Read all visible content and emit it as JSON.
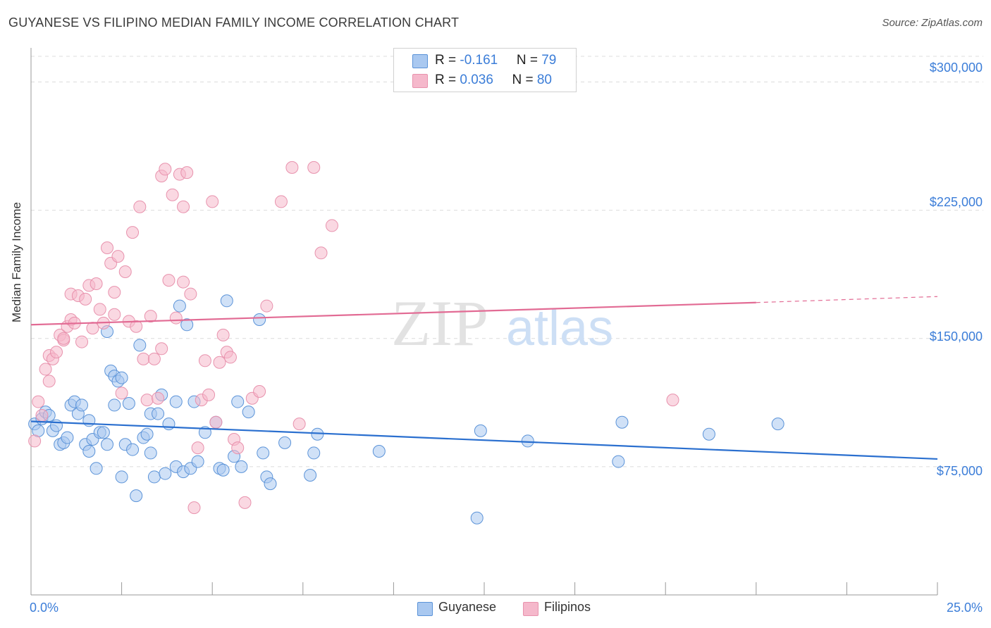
{
  "title": "GUYANESE VS FILIPINO MEDIAN FAMILY INCOME CORRELATION CHART",
  "source": "Source: ZipAtlas.com",
  "watermark": {
    "zip": "ZIP",
    "atlas": "atlas"
  },
  "legend": {
    "rows": [
      {
        "r_label": "R = ",
        "r_value": "-0.161",
        "n_label": "N = ",
        "n_value": "79",
        "color": "#a9c8f0"
      },
      {
        "r_label": "R = ",
        "r_value": "0.036",
        "n_label": "N = ",
        "n_value": "80",
        "color": "#f5b8cb"
      }
    ]
  },
  "colors": {
    "guyanese_fill": "#a9c8f0",
    "guyanese_stroke": "#5b93d8",
    "guyanese_line": "#2a6fcf",
    "filipinos_fill": "#f5b8cb",
    "filipinos_stroke": "#e892ad",
    "filipinos_line": "#e26b94",
    "grid": "#dcdcdc",
    "tick_text": "#3b7dd8"
  },
  "chart_data": {
    "type": "scatter",
    "title": "GUYANESE VS FILIPINO MEDIAN FAMILY INCOME CORRELATION CHART",
    "xlabel": "",
    "ylabel": "Median Family Income",
    "xlim": [
      0,
      25
    ],
    "ylim": [
      0,
      315000
    ],
    "x_tick_labels": [
      "0.0%",
      "25.0%"
    ],
    "y_ticks": [
      75000,
      150000,
      225000,
      300000
    ],
    "y_tick_labels": [
      "$75,000",
      "$150,000",
      "$225,000",
      "$300,000"
    ],
    "grid": "horizontal dashed",
    "legend_placement": "bottom-center",
    "series": [
      {
        "name": "Guyanese",
        "trend": {
          "x": [
            0,
            25
          ],
          "y": [
            101500,
            79500
          ]
        },
        "points": [
          [
            0.1,
            100000
          ],
          [
            0.2,
            96000
          ],
          [
            0.3,
            103000
          ],
          [
            0.4,
            107000
          ],
          [
            0.5,
            105000
          ],
          [
            0.6,
            96000
          ],
          [
            0.7,
            99000
          ],
          [
            0.8,
            88000
          ],
          [
            0.9,
            89000
          ],
          [
            1.0,
            92000
          ],
          [
            1.1,
            111000
          ],
          [
            1.2,
            113000
          ],
          [
            1.3,
            106000
          ],
          [
            1.4,
            111000
          ],
          [
            1.5,
            88000
          ],
          [
            1.6,
            102000
          ],
          [
            1.6,
            84000
          ],
          [
            1.7,
            91000
          ],
          [
            1.8,
            74000
          ],
          [
            1.9,
            95000
          ],
          [
            2.0,
            95000
          ],
          [
            2.1,
            154000
          ],
          [
            2.1,
            88000
          ],
          [
            2.2,
            131000
          ],
          [
            2.3,
            128000
          ],
          [
            2.3,
            111000
          ],
          [
            2.4,
            125000
          ],
          [
            2.5,
            127000
          ],
          [
            2.5,
            69000
          ],
          [
            2.6,
            88000
          ],
          [
            2.7,
            112000
          ],
          [
            2.8,
            85000
          ],
          [
            2.9,
            58000
          ],
          [
            3.0,
            146000
          ],
          [
            3.1,
            92000
          ],
          [
            3.2,
            94000
          ],
          [
            3.3,
            106000
          ],
          [
            3.3,
            83000
          ],
          [
            3.4,
            69000
          ],
          [
            3.5,
            106000
          ],
          [
            3.6,
            117000
          ],
          [
            3.7,
            71000
          ],
          [
            3.8,
            100000
          ],
          [
            4.0,
            113000
          ],
          [
            4.0,
            75000
          ],
          [
            4.1,
            169000
          ],
          [
            4.2,
            72000
          ],
          [
            4.3,
            158000
          ],
          [
            4.4,
            74000
          ],
          [
            4.5,
            113000
          ],
          [
            4.6,
            78000
          ],
          [
            4.8,
            95000
          ],
          [
            5.1,
            101000
          ],
          [
            5.2,
            74000
          ],
          [
            5.3,
            73000
          ],
          [
            5.4,
            172000
          ],
          [
            5.6,
            81000
          ],
          [
            5.7,
            113000
          ],
          [
            5.8,
            75000
          ],
          [
            6.0,
            107000
          ],
          [
            6.3,
            161000
          ],
          [
            6.4,
            83000
          ],
          [
            6.5,
            69000
          ],
          [
            6.6,
            65000
          ],
          [
            7.0,
            89000
          ],
          [
            7.7,
            70000
          ],
          [
            7.8,
            83000
          ],
          [
            7.9,
            94000
          ],
          [
            9.6,
            84000
          ],
          [
            12.3,
            45000
          ],
          [
            12.4,
            96000
          ],
          [
            13.7,
            90000
          ],
          [
            16.2,
            78000
          ],
          [
            16.3,
            101000
          ],
          [
            18.7,
            94000
          ],
          [
            20.6,
            100000
          ]
        ]
      },
      {
        "name": "Filipinos",
        "trend": {
          "x": [
            0,
            20
          ],
          "y": [
            158000,
            171000
          ]
        },
        "trend_dashed": {
          "x": [
            20,
            25
          ],
          "y": [
            171000,
            174500
          ]
        },
        "points": [
          [
            0.1,
            90000
          ],
          [
            0.2,
            113000
          ],
          [
            0.3,
            105000
          ],
          [
            0.4,
            132000
          ],
          [
            0.5,
            125000
          ],
          [
            0.5,
            140000
          ],
          [
            0.6,
            138000
          ],
          [
            0.7,
            142000
          ],
          [
            0.8,
            152000
          ],
          [
            0.9,
            149000
          ],
          [
            0.9,
            150000
          ],
          [
            1.0,
            157000
          ],
          [
            1.1,
            161000
          ],
          [
            1.1,
            176000
          ],
          [
            1.2,
            159000
          ],
          [
            1.3,
            175000
          ],
          [
            1.4,
            148000
          ],
          [
            1.5,
            173000
          ],
          [
            1.6,
            181000
          ],
          [
            1.7,
            156000
          ],
          [
            1.8,
            182000
          ],
          [
            1.9,
            167000
          ],
          [
            2.0,
            159000
          ],
          [
            2.1,
            203000
          ],
          [
            2.2,
            194000
          ],
          [
            2.3,
            164000
          ],
          [
            2.3,
            177000
          ],
          [
            2.4,
            198000
          ],
          [
            2.5,
            118000
          ],
          [
            2.6,
            189000
          ],
          [
            2.7,
            160000
          ],
          [
            2.8,
            212000
          ],
          [
            2.9,
            157000
          ],
          [
            3.0,
            227000
          ],
          [
            3.1,
            138000
          ],
          [
            3.2,
            114000
          ],
          [
            3.3,
            163000
          ],
          [
            3.4,
            138000
          ],
          [
            3.5,
            115000
          ],
          [
            3.6,
            144000
          ],
          [
            3.6,
            245000
          ],
          [
            3.7,
            249000
          ],
          [
            3.8,
            184000
          ],
          [
            3.9,
            234000
          ],
          [
            4.0,
            162000
          ],
          [
            4.1,
            246000
          ],
          [
            4.2,
            183000
          ],
          [
            4.2,
            227000
          ],
          [
            4.3,
            247000
          ],
          [
            4.4,
            176000
          ],
          [
            4.5,
            51000
          ],
          [
            4.6,
            86000
          ],
          [
            4.7,
            114000
          ],
          [
            4.8,
            137000
          ],
          [
            4.9,
            117000
          ],
          [
            5.0,
            230000
          ],
          [
            5.1,
            101000
          ],
          [
            5.2,
            136000
          ],
          [
            5.3,
            152000
          ],
          [
            5.4,
            142000
          ],
          [
            5.5,
            139000
          ],
          [
            5.6,
            91000
          ],
          [
            5.7,
            86000
          ],
          [
            5.9,
            54000
          ],
          [
            6.1,
            115000
          ],
          [
            6.3,
            119000
          ],
          [
            6.5,
            169000
          ],
          [
            6.9,
            230000
          ],
          [
            7.2,
            250000
          ],
          [
            7.4,
            100000
          ],
          [
            7.8,
            250000
          ],
          [
            8.0,
            200000
          ],
          [
            8.3,
            216000
          ],
          [
            17.7,
            114000
          ]
        ]
      }
    ]
  }
}
